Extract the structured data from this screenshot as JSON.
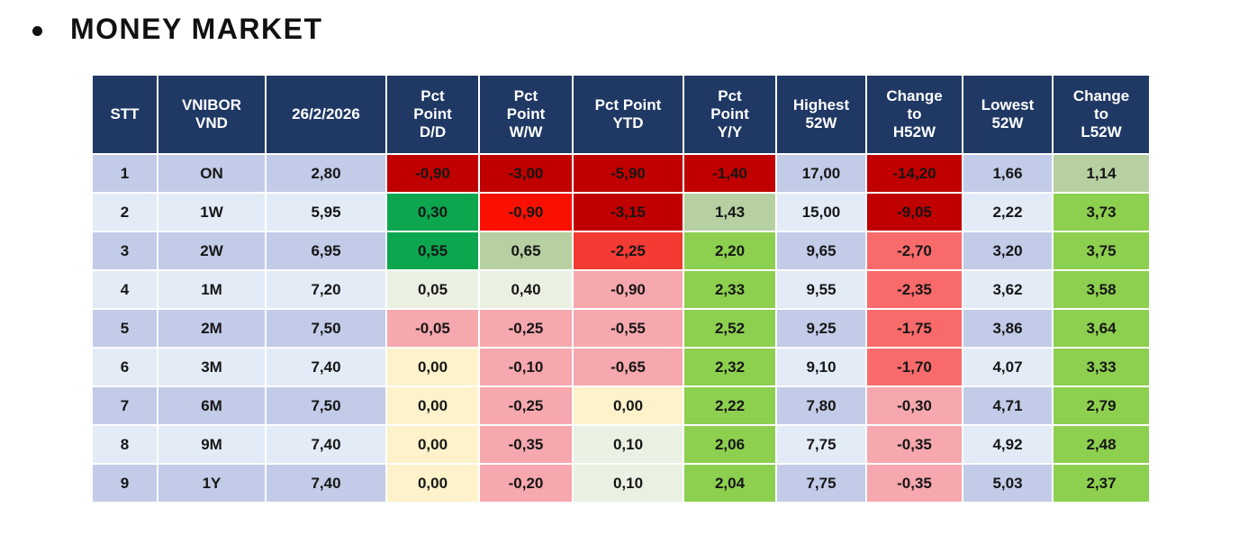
{
  "section": {
    "title": "MONEY MARKET"
  },
  "colors": {
    "header_bg": "#1F3864",
    "header_text": "#FFFFFF",
    "row_odd": "#C2CBE7",
    "row_even": "#E3EBF7",
    "cell_text": "#161616",
    "dark_red": "#C00000",
    "bright_red": "#FA1000",
    "red2": "#F43B33",
    "salmon": "#F96B6B",
    "pink": "#F6A8AE",
    "strong_green": "#0CA64F",
    "bright_green": "#8DCF4F",
    "light_green": "#B6D0A2",
    "pale_green": "#EAF1E2",
    "pale_yellow": "#FDF2CA"
  },
  "table": {
    "columns": [
      {
        "id": "stt",
        "label": "STT"
      },
      {
        "id": "vnibor",
        "label": "VNIBOR\nVND"
      },
      {
        "id": "date",
        "label": "26/2/2026"
      },
      {
        "id": "dd",
        "label": "Pct\nPoint\nD/D"
      },
      {
        "id": "ww",
        "label": "Pct\nPoint\nW/W"
      },
      {
        "id": "ytd",
        "label": "Pct Point\nYTD"
      },
      {
        "id": "yy",
        "label": "Pct\nPoint\nY/Y"
      },
      {
        "id": "h52",
        "label": "Highest\n52W"
      },
      {
        "id": "chg_h52",
        "label": "Change\nto\nH52W"
      },
      {
        "id": "l52",
        "label": "Lowest\n52W"
      },
      {
        "id": "chg_l52",
        "label": "Change\nto\nL52W"
      }
    ],
    "rows": [
      {
        "cells": [
          {
            "v": "1"
          },
          {
            "v": "ON"
          },
          {
            "v": "2,80"
          },
          {
            "v": "-0,90",
            "c": "dark_red"
          },
          {
            "v": "-3,00",
            "c": "dark_red"
          },
          {
            "v": "-5,90",
            "c": "dark_red"
          },
          {
            "v": "-1,40",
            "c": "dark_red"
          },
          {
            "v": "17,00"
          },
          {
            "v": "-14,20",
            "c": "dark_red"
          },
          {
            "v": "1,66"
          },
          {
            "v": "1,14",
            "c": "light_green"
          }
        ]
      },
      {
        "cells": [
          {
            "v": "2"
          },
          {
            "v": "1W"
          },
          {
            "v": "5,95"
          },
          {
            "v": "0,30",
            "c": "strong_green"
          },
          {
            "v": "-0,90",
            "c": "bright_red"
          },
          {
            "v": "-3,15",
            "c": "dark_red"
          },
          {
            "v": "1,43",
            "c": "light_green"
          },
          {
            "v": "15,00"
          },
          {
            "v": "-9,05",
            "c": "dark_red"
          },
          {
            "v": "2,22"
          },
          {
            "v": "3,73",
            "c": "bright_green"
          }
        ]
      },
      {
        "cells": [
          {
            "v": "3"
          },
          {
            "v": "2W"
          },
          {
            "v": "6,95"
          },
          {
            "v": "0,55",
            "c": "strong_green"
          },
          {
            "v": "0,65",
            "c": "light_green"
          },
          {
            "v": "-2,25",
            "c": "red2"
          },
          {
            "v": "2,20",
            "c": "bright_green"
          },
          {
            "v": "9,65"
          },
          {
            "v": "-2,70",
            "c": "salmon"
          },
          {
            "v": "3,20"
          },
          {
            "v": "3,75",
            "c": "bright_green"
          }
        ]
      },
      {
        "cells": [
          {
            "v": "4"
          },
          {
            "v": "1M"
          },
          {
            "v": "7,20"
          },
          {
            "v": "0,05",
            "c": "pale_green"
          },
          {
            "v": "0,40",
            "c": "pale_green"
          },
          {
            "v": "-0,90",
            "c": "pink"
          },
          {
            "v": "2,33",
            "c": "bright_green"
          },
          {
            "v": "9,55"
          },
          {
            "v": "-2,35",
            "c": "salmon"
          },
          {
            "v": "3,62"
          },
          {
            "v": "3,58",
            "c": "bright_green"
          }
        ]
      },
      {
        "cells": [
          {
            "v": "5"
          },
          {
            "v": "2M"
          },
          {
            "v": "7,50"
          },
          {
            "v": "-0,05",
            "c": "pink"
          },
          {
            "v": "-0,25",
            "c": "pink"
          },
          {
            "v": "-0,55",
            "c": "pink"
          },
          {
            "v": "2,52",
            "c": "bright_green"
          },
          {
            "v": "9,25"
          },
          {
            "v": "-1,75",
            "c": "salmon"
          },
          {
            "v": "3,86"
          },
          {
            "v": "3,64",
            "c": "bright_green"
          }
        ]
      },
      {
        "cells": [
          {
            "v": "6"
          },
          {
            "v": "3M"
          },
          {
            "v": "7,40"
          },
          {
            "v": "0,00",
            "c": "pale_yellow"
          },
          {
            "v": "-0,10",
            "c": "pink"
          },
          {
            "v": "-0,65",
            "c": "pink"
          },
          {
            "v": "2,32",
            "c": "bright_green"
          },
          {
            "v": "9,10"
          },
          {
            "v": "-1,70",
            "c": "salmon"
          },
          {
            "v": "4,07"
          },
          {
            "v": "3,33",
            "c": "bright_green"
          }
        ]
      },
      {
        "cells": [
          {
            "v": "7"
          },
          {
            "v": "6M"
          },
          {
            "v": "7,50"
          },
          {
            "v": "0,00",
            "c": "pale_yellow"
          },
          {
            "v": "-0,25",
            "c": "pink"
          },
          {
            "v": "0,00",
            "c": "pale_yellow"
          },
          {
            "v": "2,22",
            "c": "bright_green"
          },
          {
            "v": "7,80"
          },
          {
            "v": "-0,30",
            "c": "pink"
          },
          {
            "v": "4,71"
          },
          {
            "v": "2,79",
            "c": "bright_green"
          }
        ]
      },
      {
        "cells": [
          {
            "v": "8"
          },
          {
            "v": "9M"
          },
          {
            "v": "7,40"
          },
          {
            "v": "0,00",
            "c": "pale_yellow"
          },
          {
            "v": "-0,35",
            "c": "pink"
          },
          {
            "v": "0,10",
            "c": "pale_green"
          },
          {
            "v": "2,06",
            "c": "bright_green"
          },
          {
            "v": "7,75"
          },
          {
            "v": "-0,35",
            "c": "pink"
          },
          {
            "v": "4,92"
          },
          {
            "v": "2,48",
            "c": "bright_green"
          }
        ]
      },
      {
        "cells": [
          {
            "v": "9"
          },
          {
            "v": "1Y"
          },
          {
            "v": "7,40"
          },
          {
            "v": "0,00",
            "c": "pale_yellow"
          },
          {
            "v": "-0,20",
            "c": "pink"
          },
          {
            "v": "0,10",
            "c": "pale_green"
          },
          {
            "v": "2,04",
            "c": "bright_green"
          },
          {
            "v": "7,75"
          },
          {
            "v": "-0,35",
            "c": "pink"
          },
          {
            "v": "5,03"
          },
          {
            "v": "2,37",
            "c": "bright_green"
          }
        ]
      }
    ]
  }
}
